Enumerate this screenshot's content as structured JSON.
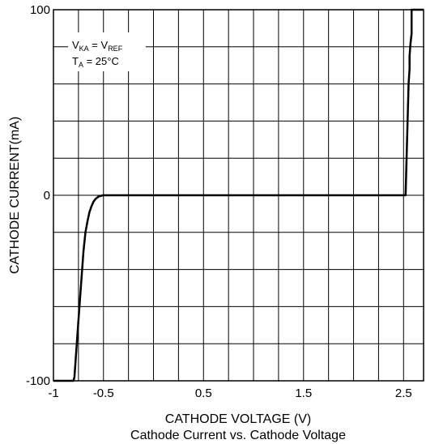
{
  "chart_data": {
    "type": "line",
    "title": "Cathode Current vs. Cathode Voltage",
    "xlabel": "CATHODE VOLTAGE (V)",
    "ylabel": "CATHODE CURRENT(mA)",
    "xlim": [
      -1,
      2.7
    ],
    "ylim": [
      -100,
      100
    ],
    "x_ticks": [
      -1,
      -0.5,
      0.5,
      1.5,
      2.5
    ],
    "x_tick_labels": [
      "-1",
      "-0.5",
      "0.5",
      "1.5",
      "2.5"
    ],
    "y_ticks": [
      -100,
      0,
      100
    ],
    "y_tick_labels": [
      "-100",
      "0",
      "100"
    ],
    "grid": true,
    "annotation": {
      "line1_main": "V",
      "line1_sub1": "KA",
      "line1_eq": " = V",
      "line1_sub2": "REF",
      "line2_main": "T",
      "line2_sub": "A",
      "line2_rest": " = 25°C"
    },
    "series": [
      {
        "color": "#000000",
        "x": [
          -1.0,
          -0.8,
          -0.79,
          -0.78,
          -0.76,
          -0.74,
          -0.72,
          -0.7,
          -0.68,
          -0.66,
          -0.64,
          -0.62,
          -0.6,
          -0.58,
          -0.55,
          -0.52,
          -0.5,
          2.48,
          2.52,
          2.55,
          2.56,
          2.56,
          2.57,
          2.58,
          2.58,
          2.62,
          2.7
        ],
        "y": [
          -100,
          -100,
          -98,
          -90,
          -75,
          -60,
          -45,
          -30,
          -20,
          -14,
          -9,
          -6,
          -3.5,
          -2,
          -0.7,
          -0.2,
          0,
          0,
          0,
          60,
          68,
          75,
          82,
          87,
          100,
          100,
          100
        ]
      }
    ]
  }
}
